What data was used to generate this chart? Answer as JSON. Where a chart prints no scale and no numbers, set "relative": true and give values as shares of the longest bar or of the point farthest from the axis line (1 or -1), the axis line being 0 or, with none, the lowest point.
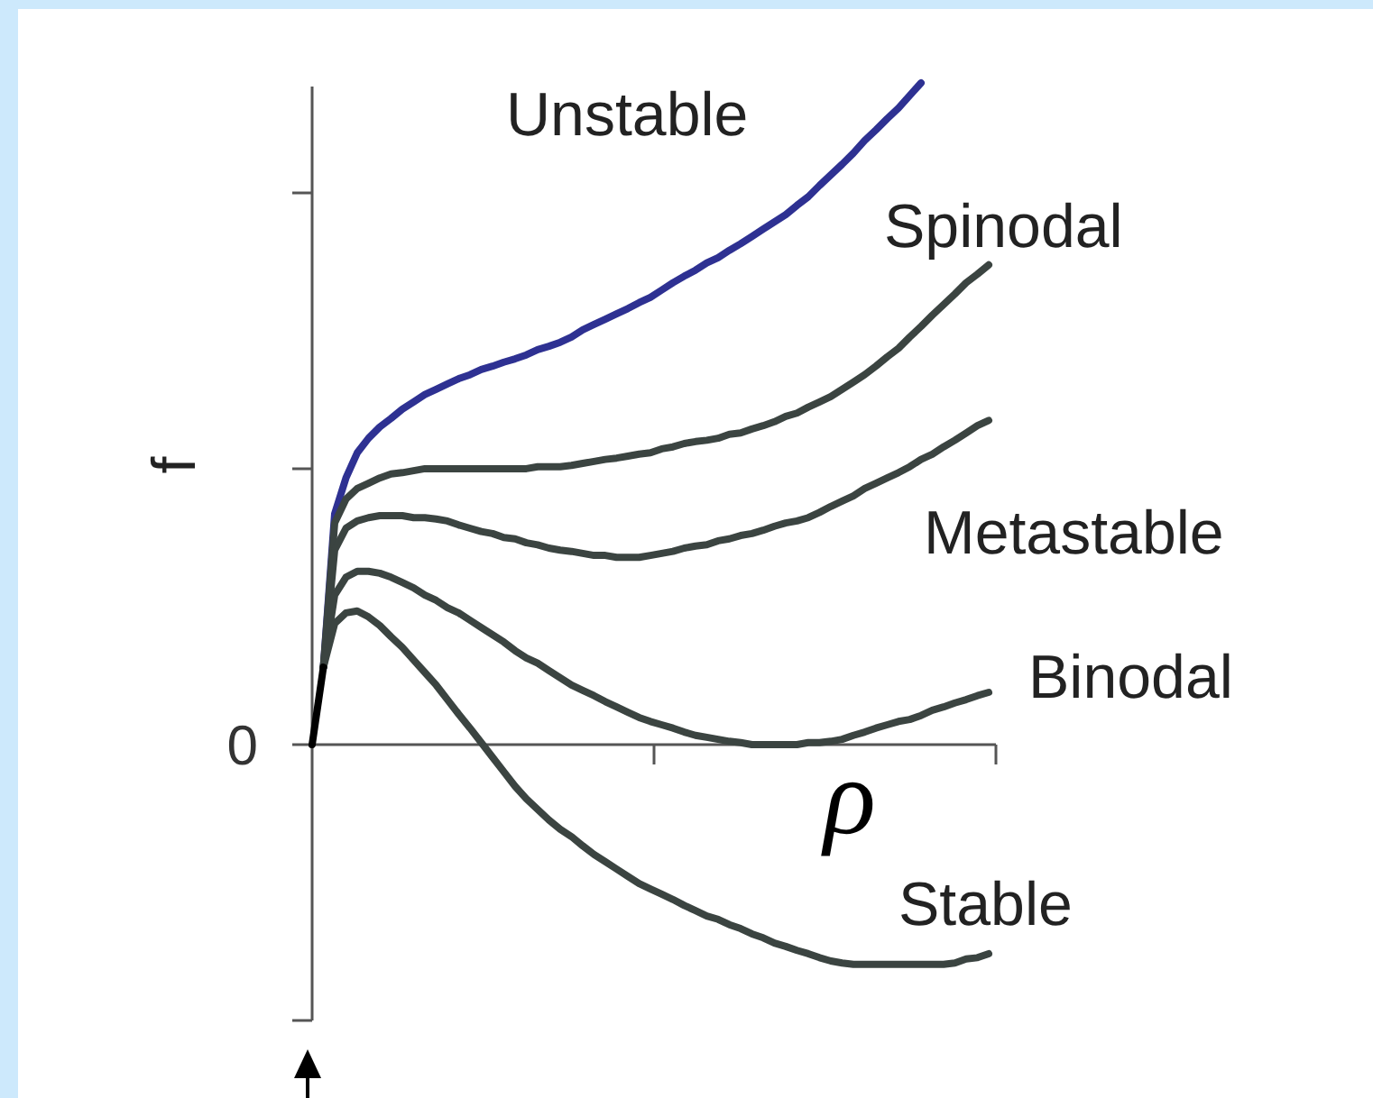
{
  "chart_data": {
    "type": "line",
    "relative": true,
    "xlabel": "ρ",
    "ylabel": "f",
    "annotations": [
      "0"
    ],
    "categories": [
      null,
      null,
      null,
      null,
      null,
      null,
      null,
      null,
      null,
      null,
      null,
      null,
      null,
      null,
      null,
      null,
      null,
      null,
      null,
      null,
      null,
      null,
      null,
      null,
      null,
      null,
      null,
      null,
      null,
      null,
      null,
      null,
      null,
      null,
      null,
      null,
      null,
      null,
      null,
      null,
      null,
      null,
      null,
      null,
      null,
      null,
      null,
      null,
      null,
      null,
      null,
      null,
      null,
      null,
      null,
      null,
      null,
      null,
      null,
      null,
      null
    ],
    "series": [
      {
        "name": "Unstable",
        "color": "#2e3192",
        "values": [
          null,
          0.117,
          0.349,
          0.403,
          0.441,
          0.463,
          0.48,
          0.493,
          0.507,
          0.518,
          0.529,
          0.537,
          0.545,
          0.553,
          0.559,
          0.567,
          0.572,
          0.578,
          0.583,
          0.589,
          0.597,
          0.602,
          0.608,
          0.616,
          0.627,
          0.635,
          0.643,
          0.651,
          0.659,
          0.668,
          0.676,
          0.687,
          0.698,
          0.708,
          0.717,
          0.728,
          0.736,
          0.747,
          0.757,
          0.768,
          0.779,
          0.79,
          0.801,
          0.815,
          0.828,
          0.845,
          0.861,
          0.877,
          0.894,
          0.913,
          0.929,
          0.946,
          0.962,
          0.981,
          1,
          null,
          null,
          null,
          null,
          null,
          null
        ]
      },
      {
        "name": "Spinodal",
        "color": "#3b4441",
        "values": [
          null,
          0.117,
          0.335,
          0.371,
          0.387,
          0.395,
          0.403,
          0.409,
          0.411,
          0.414,
          0.417,
          0.417,
          0.417,
          0.417,
          0.417,
          0.417,
          0.417,
          0.417,
          0.417,
          0.417,
          0.42,
          0.42,
          0.42,
          0.422,
          0.425,
          0.428,
          0.431,
          0.433,
          0.436,
          0.439,
          0.441,
          0.447,
          0.45,
          0.455,
          0.458,
          0.46,
          0.463,
          0.469,
          0.471,
          0.477,
          0.482,
          0.488,
          0.496,
          0.501,
          0.51,
          0.518,
          0.526,
          0.537,
          0.548,
          0.559,
          0.572,
          0.586,
          0.599,
          0.616,
          0.632,
          0.649,
          0.665,
          0.681,
          0.698,
          0.711,
          0.725
        ]
      },
      {
        "name": "Metastable",
        "color": "#3b4441",
        "values": [
          null,
          0.117,
          0.294,
          0.327,
          0.338,
          0.343,
          0.346,
          0.346,
          0.346,
          0.343,
          0.343,
          0.341,
          0.338,
          0.332,
          0.327,
          0.322,
          0.319,
          0.313,
          0.311,
          0.305,
          0.302,
          0.297,
          0.294,
          0.292,
          0.289,
          0.286,
          0.286,
          0.283,
          0.283,
          0.283,
          0.286,
          0.289,
          0.292,
          0.297,
          0.3,
          0.302,
          0.308,
          0.311,
          0.316,
          0.319,
          0.324,
          0.33,
          0.335,
          0.338,
          0.343,
          0.351,
          0.36,
          0.368,
          0.376,
          0.387,
          0.395,
          0.403,
          0.411,
          0.42,
          0.431,
          0.439,
          0.45,
          0.46,
          0.471,
          0.482,
          0.49
        ]
      },
      {
        "name": "Binodal",
        "color": "#3b4441",
        "values": [
          null,
          0.117,
          0.226,
          0.253,
          0.262,
          0.262,
          0.259,
          0.253,
          0.245,
          0.237,
          0.226,
          0.218,
          0.207,
          0.199,
          0.188,
          0.177,
          0.166,
          0.155,
          0.142,
          0.131,
          0.123,
          0.112,
          0.101,
          0.09,
          0.082,
          0.074,
          0.065,
          0.057,
          0.049,
          0.041,
          0.035,
          0.03,
          0.025,
          0.019,
          0.014,
          0.011,
          0.008,
          0.005,
          0.003,
          0,
          0,
          0,
          0,
          0,
          0.003,
          0.003,
          0.005,
          0.008,
          0.014,
          0.019,
          0.025,
          0.03,
          0.035,
          0.038,
          0.044,
          0.052,
          0.057,
          0.063,
          0.068,
          0.074,
          0.079
        ]
      },
      {
        "name": "Stable",
        "color": "#3b4441",
        "values": [
          null,
          0.117,
          0.183,
          0.199,
          0.202,
          0.193,
          0.18,
          0.163,
          0.147,
          0.128,
          0.109,
          0.09,
          0.068,
          0.046,
          0.025,
          0.003,
          -0.019,
          -0.041,
          -0.063,
          -0.082,
          -0.098,
          -0.114,
          -0.128,
          -0.139,
          -0.153,
          -0.166,
          -0.177,
          -0.188,
          -0.199,
          -0.21,
          -0.218,
          -0.226,
          -0.234,
          -0.243,
          -0.251,
          -0.259,
          -0.264,
          -0.272,
          -0.278,
          -0.286,
          -0.292,
          -0.3,
          -0.305,
          -0.311,
          -0.316,
          -0.322,
          -0.327,
          -0.33,
          -0.332,
          -0.332,
          -0.332,
          -0.332,
          -0.332,
          -0.332,
          -0.332,
          -0.332,
          -0.332,
          -0.33,
          -0.324,
          -0.322,
          -0.316
        ]
      },
      {
        "color": "#000000",
        "values": [
          0,
          0.117,
          null,
          null,
          null,
          null,
          null,
          null,
          null,
          null,
          null,
          null,
          null,
          null,
          null,
          null,
          null,
          null,
          null,
          null,
          null,
          null,
          null,
          null,
          null,
          null,
          null,
          null,
          null,
          null,
          null,
          null,
          null,
          null,
          null,
          null,
          null,
          null,
          null,
          null,
          null,
          null,
          null,
          null,
          null,
          null,
          null,
          null,
          null,
          null,
          null,
          null,
          null,
          null,
          null,
          null,
          null,
          null,
          null,
          null,
          null
        ]
      }
    ]
  }
}
